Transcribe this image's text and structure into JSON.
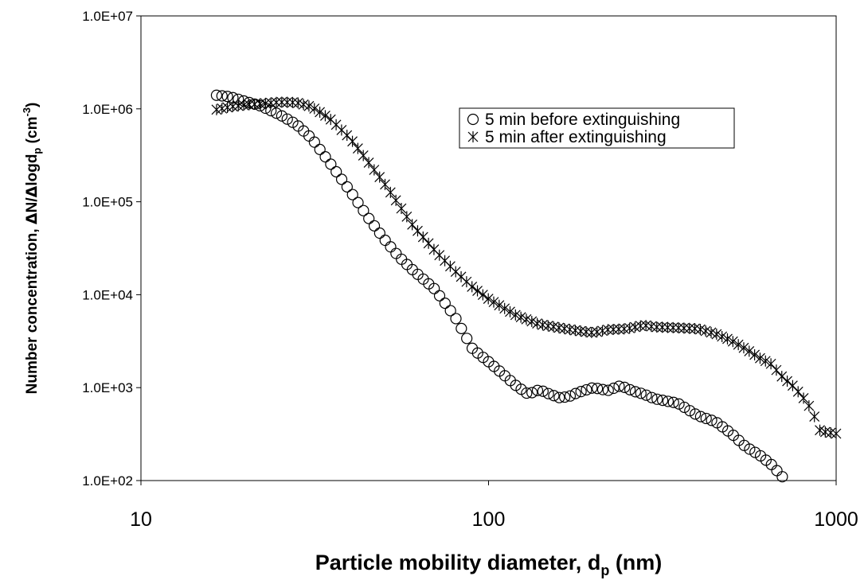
{
  "chart_data": {
    "type": "scatter",
    "xlabel": "Particle mobility diameter, d",
    "xlabel_sub": "p",
    "xlabel_suffix": " (nm)",
    "ylabel": "Number concentration, ",
    "ylabel_delta1": "Δ",
    "ylabel_mid": "N/",
    "ylabel_delta2": "Δ",
    "ylabel_log": "logd",
    "ylabel_sub": "p",
    "ylabel_units": " (cm",
    "ylabel_exp": "-3",
    "ylabel_close": ")",
    "x_scale": "log",
    "y_scale": "log",
    "xlim": [
      10,
      1000
    ],
    "ylim": [
      100,
      10000000
    ],
    "x_ticks": [
      {
        "value": 10,
        "label": "10"
      },
      {
        "value": 100,
        "label": "100"
      },
      {
        "value": 1000,
        "label": "1000"
      }
    ],
    "y_ticks": [
      {
        "value": 100,
        "label": "1.0E+02"
      },
      {
        "value": 1000,
        "label": "1.0E+03"
      },
      {
        "value": 10000,
        "label": "1.0E+04"
      },
      {
        "value": 100000,
        "label": "1.0E+05"
      },
      {
        "value": 1000000,
        "label": "1.0E+06"
      },
      {
        "value": 10000000,
        "label": "1.0E+07"
      }
    ],
    "grid": false,
    "legend_position": "top-right",
    "series": [
      {
        "name": "5 min before extinguishing",
        "marker": "circle",
        "anchors": [
          [
            16.5,
            1400000
          ],
          [
            18,
            1350000
          ],
          [
            20,
            1200000
          ],
          [
            22,
            1080000
          ],
          [
            25,
            870000
          ],
          [
            28,
            680000
          ],
          [
            31,
            480000
          ],
          [
            35,
            260000
          ],
          [
            40,
            130000
          ],
          [
            45,
            68000
          ],
          [
            50,
            40000
          ],
          [
            55,
            26000
          ],
          [
            60,
            19000
          ],
          [
            70,
            11500
          ],
          [
            80,
            5800
          ],
          [
            90,
            2600
          ],
          [
            100,
            1900
          ],
          [
            110,
            1400
          ],
          [
            120,
            1050
          ],
          [
            130,
            850
          ],
          [
            140,
            950
          ],
          [
            150,
            850
          ],
          [
            160,
            780
          ],
          [
            170,
            800
          ],
          [
            180,
            880
          ],
          [
            200,
            1000
          ],
          [
            220,
            930
          ],
          [
            240,
            1050
          ],
          [
            260,
            920
          ],
          [
            280,
            850
          ],
          [
            300,
            760
          ],
          [
            350,
            680
          ],
          [
            400,
            500
          ],
          [
            450,
            430
          ],
          [
            500,
            320
          ],
          [
            550,
            230
          ],
          [
            600,
            190
          ],
          [
            650,
            150
          ],
          [
            700,
            110
          ]
        ]
      },
      {
        "name": "5 min after extinguishing",
        "marker": "asterisk",
        "anchors": [
          [
            16.5,
            980000
          ],
          [
            18,
            1050000
          ],
          [
            20,
            1100000
          ],
          [
            25,
            1180000
          ],
          [
            28,
            1170000
          ],
          [
            31,
            1050000
          ],
          [
            35,
            780000
          ],
          [
            40,
            480000
          ],
          [
            45,
            270000
          ],
          [
            50,
            160000
          ],
          [
            55,
            95000
          ],
          [
            60,
            58000
          ],
          [
            70,
            30000
          ],
          [
            80,
            18000
          ],
          [
            90,
            12000
          ],
          [
            100,
            9000
          ],
          [
            120,
            6000
          ],
          [
            140,
            4800
          ],
          [
            160,
            4400
          ],
          [
            180,
            4100
          ],
          [
            200,
            3900
          ],
          [
            220,
            4200
          ],
          [
            250,
            4300
          ],
          [
            280,
            4700
          ],
          [
            300,
            4500
          ],
          [
            350,
            4400
          ],
          [
            400,
            4300
          ],
          [
            450,
            3800
          ],
          [
            500,
            3200
          ],
          [
            550,
            2600
          ],
          [
            600,
            2100
          ],
          [
            650,
            1800
          ],
          [
            700,
            1300
          ],
          [
            750,
            1050
          ],
          [
            800,
            800
          ],
          [
            850,
            580
          ],
          [
            900,
            340
          ],
          [
            1000,
            320
          ]
        ]
      }
    ]
  }
}
